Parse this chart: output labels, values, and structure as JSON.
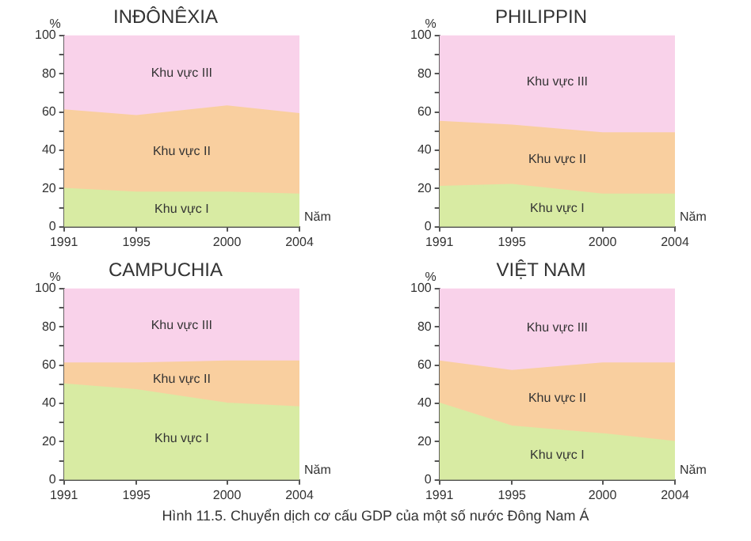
{
  "chart_data": [
    {
      "type": "area",
      "stacked": true,
      "title": "INĐÔNÊXIA",
      "xlabel": "Năm",
      "ylabel": "%",
      "x": [
        1991,
        1995,
        2000,
        2004
      ],
      "xlim": [
        1991,
        2004
      ],
      "xticks": [
        1991,
        1995,
        2000,
        2004
      ],
      "ylim": [
        0,
        100
      ],
      "yticks": [
        0,
        {
          "value": 10,
          "label": null
        },
        20,
        {
          "value": 30,
          "label": null
        },
        40,
        {
          "value": 50,
          "label": null
        },
        60,
        {
          "value": 70,
          "label": null
        },
        80,
        {
          "value": 90,
          "label": null
        },
        100
      ],
      "grid": false,
      "legend": false,
      "series": [
        {
          "name": "Khu vực I",
          "color": "#d8eba3",
          "values": [
            20,
            18,
            18,
            17
          ]
        },
        {
          "name": "Khu vực II",
          "color": "#f9cf9f",
          "values": [
            41,
            40,
            45,
            42
          ]
        },
        {
          "name": "Khu vực III",
          "color": "#f9d2ea",
          "values": [
            39,
            42,
            37,
            41
          ]
        }
      ]
    },
    {
      "type": "area",
      "stacked": true,
      "title": "PHILIPPIN",
      "xlabel": "Năm",
      "ylabel": "%",
      "x": [
        1991,
        1995,
        2000,
        2004
      ],
      "xlim": [
        1991,
        2004
      ],
      "xticks": [
        1991,
        1995,
        2000,
        2004
      ],
      "ylim": [
        0,
        100
      ],
      "yticks": [
        0,
        {
          "value": 10,
          "label": null
        },
        20,
        {
          "value": 30,
          "label": null
        },
        40,
        {
          "value": 50,
          "label": null
        },
        60,
        {
          "value": 70,
          "label": null
        },
        80,
        {
          "value": 90,
          "label": null
        },
        100
      ],
      "grid": false,
      "legend": false,
      "series": [
        {
          "name": "Khu vực I",
          "color": "#d8eba3",
          "values": [
            21,
            22,
            17,
            17
          ]
        },
        {
          "name": "Khu vực II",
          "color": "#f9cf9f",
          "values": [
            34,
            31,
            32,
            32
          ]
        },
        {
          "name": "Khu vực III",
          "color": "#f9d2ea",
          "values": [
            45,
            47,
            51,
            51
          ]
        }
      ]
    },
    {
      "type": "area",
      "stacked": true,
      "title": "CAMPUCHIA",
      "xlabel": "Năm",
      "ylabel": "%",
      "x": [
        1991,
        1995,
        2000,
        2004
      ],
      "xlim": [
        1991,
        2004
      ],
      "xticks": [
        1991,
        1995,
        2000,
        2004
      ],
      "ylim": [
        0,
        100
      ],
      "yticks": [
        0,
        {
          "value": 10,
          "label": null
        },
        20,
        {
          "value": 30,
          "label": null
        },
        40,
        {
          "value": 50,
          "label": null
        },
        60,
        {
          "value": 70,
          "label": null
        },
        80,
        {
          "value": 90,
          "label": null
        },
        100
      ],
      "grid": false,
      "legend": false,
      "series": [
        {
          "name": "Khu vực I",
          "color": "#d8eba3",
          "values": [
            50,
            47,
            40,
            38
          ]
        },
        {
          "name": "Khu vực II",
          "color": "#f9cf9f",
          "values": [
            11,
            14,
            22,
            24
          ]
        },
        {
          "name": "Khu vực III",
          "color": "#f9d2ea",
          "values": [
            39,
            39,
            38,
            38
          ]
        }
      ]
    },
    {
      "type": "area",
      "stacked": true,
      "title": "VIỆT NAM",
      "xlabel": "Năm",
      "ylabel": "%",
      "x": [
        1991,
        1995,
        2000,
        2004
      ],
      "xlim": [
        1991,
        2004
      ],
      "xticks": [
        1991,
        1995,
        2000,
        2004
      ],
      "ylim": [
        0,
        100
      ],
      "yticks": [
        0,
        {
          "value": 10,
          "label": null
        },
        20,
        {
          "value": 30,
          "label": null
        },
        40,
        {
          "value": 50,
          "label": null
        },
        60,
        {
          "value": 70,
          "label": null
        },
        80,
        {
          "value": 90,
          "label": null
        },
        100
      ],
      "grid": false,
      "legend": false,
      "annotations": [
        "Hình 11.5. Chuyển dịch cơ cấu GDP của một số nước Đông Nam Á"
      ],
      "series": [
        {
          "name": "Khu vực I",
          "color": "#d8eba3",
          "values": [
            40,
            28,
            24,
            20
          ]
        },
        {
          "name": "Khu vực II",
          "color": "#f9cf9f",
          "values": [
            22,
            29,
            37,
            41
          ]
        },
        {
          "name": "Khu vực III",
          "color": "#f9d2ea",
          "values": [
            38,
            43,
            39,
            39
          ]
        }
      ]
    }
  ]
}
